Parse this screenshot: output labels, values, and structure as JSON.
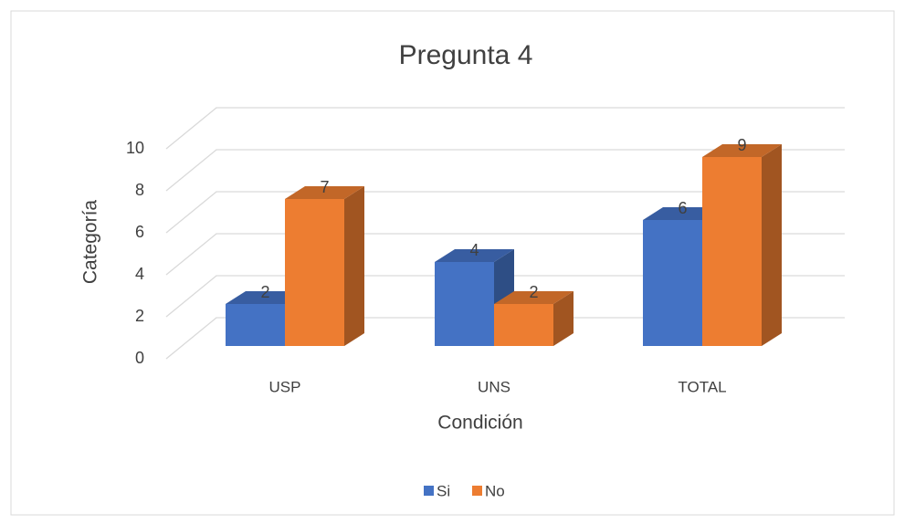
{
  "chart_data": {
    "type": "bar3d",
    "title": "Pregunta 4",
    "x_label": "Condición",
    "y_label": "Categoría",
    "categories": [
      "USP",
      "UNS",
      "TOTAL"
    ],
    "series": [
      {
        "name": "Si",
        "color": "#4472c4",
        "values": [
          2,
          4,
          6
        ]
      },
      {
        "name": "No",
        "color": "#ed7d31",
        "values": [
          7,
          2,
          9
        ]
      }
    ],
    "ylim": [
      0,
      10
    ],
    "yticks": [
      0,
      2,
      4,
      6,
      8,
      10
    ],
    "grid": true,
    "legend": "bottom"
  }
}
